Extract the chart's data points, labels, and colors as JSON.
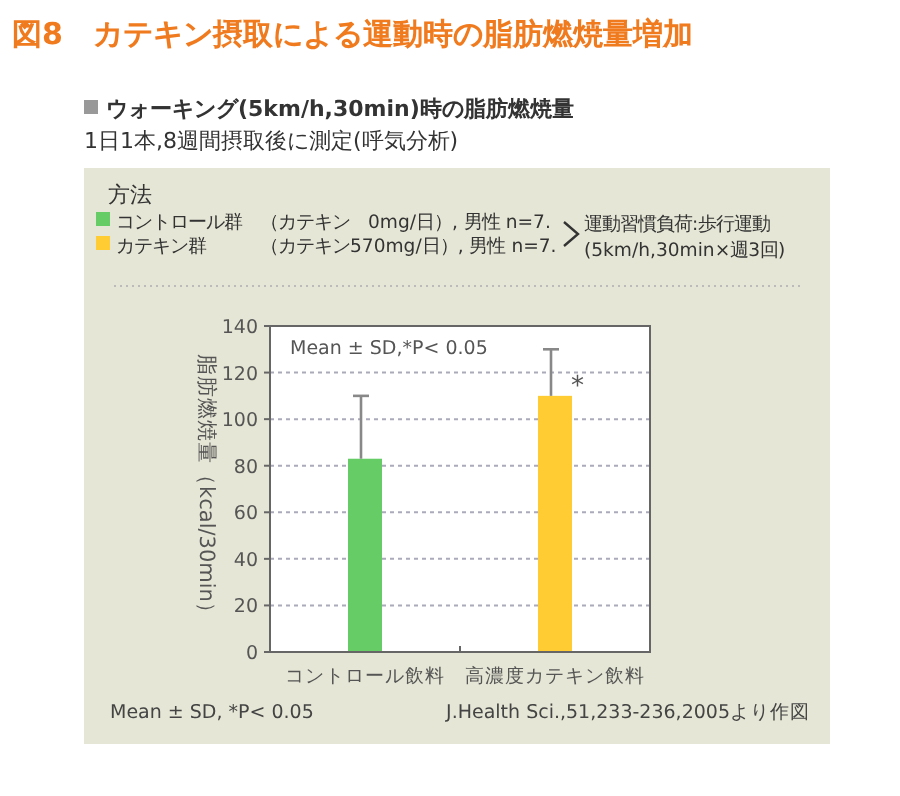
{
  "chart_data": {
    "type": "bar",
    "title": "図8　カテキン摂取による運動時の脂肪燃焼量増加",
    "subtitle": "ウォーキング(5km/h,30min)時の脂肪燃焼量",
    "ylabel": "脂肪燃焼量（kcal/30min）",
    "categories": [
      "コントロール飲料",
      "高濃度カテキン飲料"
    ],
    "values": [
      83,
      110
    ],
    "colors": [
      "#66cc66",
      "#ffcc33"
    ],
    "errors": [
      [
        83,
        110
      ],
      [
        110,
        130
      ]
    ],
    "ylim": [
      0,
      140
    ],
    "yticks": [
      0,
      20,
      40,
      60,
      80,
      100,
      120,
      140
    ],
    "grid": "y",
    "annotations": [
      "1日1本,8週間摂取後に測定(呼気分析)",
      "方法",
      "コントロール群　（カテキン　0mg/日）, 男性 n=7.",
      "カテキン群　　　（カテキン570mg/日）, 男性 n=7.",
      "運動習慣負荷:歩行運動",
      "(5km/h,30min×週3回)",
      "Mean ± SD,*P< 0.05",
      {
        "text": "*",
        "x": "高濃度カテキン飲料",
        "y": 115
      },
      "Mean ± SD, *P< 0.05",
      "J.Health Sci.,51,233-236,2005より作図"
    ]
  }
}
